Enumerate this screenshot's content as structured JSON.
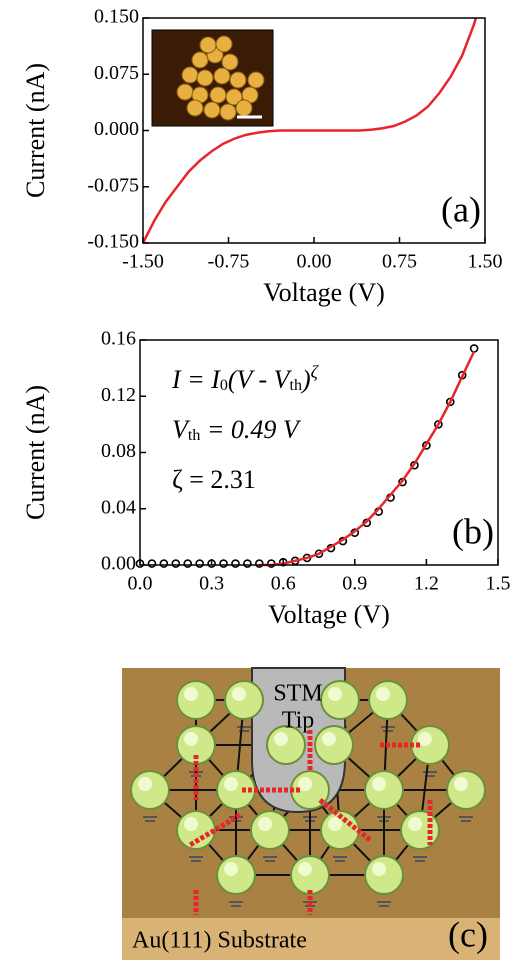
{
  "chart_data": [
    {
      "type": "line",
      "x_label": "Voltage (V)",
      "y_label": "Current (nA)",
      "annotation": "(a)",
      "x": [
        -1.5,
        -1.4,
        -1.3,
        -1.2,
        -1.1,
        -1.0,
        -0.9,
        -0.8,
        -0.7,
        -0.6,
        -0.5,
        -0.4,
        -0.3,
        -0.2,
        -0.1,
        0.0,
        0.1,
        0.2,
        0.3,
        0.4,
        0.5,
        0.6,
        0.7,
        0.8,
        0.9,
        1.0,
        1.1,
        1.2,
        1.3,
        1.4,
        1.42
      ],
      "series": [
        {
          "style": "line",
          "color": "#e8262a",
          "values": [
            -0.15,
            -0.12,
            -0.095,
            -0.075,
            -0.055,
            -0.04,
            -0.028,
            -0.018,
            -0.011,
            -0.006,
            -0.003,
            -0.001,
            0,
            0,
            0,
            0,
            0,
            0,
            0,
            0,
            0.001,
            0.003,
            0.006,
            0.012,
            0.02,
            0.032,
            0.05,
            0.072,
            0.1,
            0.14,
            0.15
          ]
        }
      ],
      "xlim": [
        -1.5,
        1.5
      ],
      "ylim": [
        -0.15,
        0.15
      ],
      "xticks": [
        {
          "value": -1.5,
          "label": "-1.50"
        },
        {
          "value": -0.75,
          "label": "-0.75"
        },
        {
          "value": 0,
          "label": "0.00"
        },
        {
          "value": 0.75,
          "label": "0.75"
        },
        {
          "value": 1.5,
          "label": "1.50"
        }
      ],
      "yticks": [
        {
          "value": -0.15,
          "label": "-0.150"
        },
        {
          "value": -0.075,
          "label": "-0.075"
        },
        {
          "value": 0,
          "label": "0.000"
        },
        {
          "value": 0.075,
          "label": "0.075"
        },
        {
          "value": 0.15,
          "label": "0.150"
        }
      ]
    },
    {
      "type": "scatter",
      "x_label": "Voltage (V)",
      "y_label": "Current (nA)",
      "annotation": "(b)",
      "equation": [
        "I = I",
        "0",
        "(V - V",
        "th",
        ")",
        "ζ"
      ],
      "vth_text": [
        "V",
        "th",
        " = 0.49 V"
      ],
      "zeta_text": "ζ = 2.31",
      "x": [
        0,
        0.05,
        0.1,
        0.15,
        0.2,
        0.25,
        0.3,
        0.35,
        0.4,
        0.45,
        0.5,
        0.55,
        0.6,
        0.65,
        0.7,
        0.75,
        0.8,
        0.85,
        0.9,
        0.95,
        1.0,
        1.05,
        1.1,
        1.15,
        1.2,
        1.25,
        1.3,
        1.35,
        1.4
      ],
      "series": [
        {
          "style": "markers",
          "color": "#000000",
          "values": [
            0.001,
            0.001,
            0.001,
            0.001,
            0.001,
            0.001,
            0.001,
            0.001,
            0.001,
            0.001,
            0.001,
            0.001,
            0.002,
            0.003,
            0.005,
            0.008,
            0.012,
            0.017,
            0.023,
            0.03,
            0.038,
            0.048,
            0.059,
            0.071,
            0.085,
            0.1,
            0.116,
            0.135,
            0.154
          ]
        },
        {
          "style": "line",
          "color": "#e8262a",
          "values": [
            null,
            null,
            null,
            null,
            null,
            null,
            null,
            null,
            null,
            null,
            0,
            0,
            0.001,
            0.003,
            0.005,
            0.008,
            0.013,
            0.018,
            0.024,
            0.031,
            0.04,
            0.05,
            0.06,
            0.072,
            0.086,
            0.1,
            0.116,
            0.134,
            0.152
          ]
        }
      ],
      "xlim": [
        0,
        1.5
      ],
      "ylim": [
        0,
        0.16
      ],
      "xticks": [
        {
          "value": 0,
          "label": "0.0"
        },
        {
          "value": 0.3,
          "label": "0.3"
        },
        {
          "value": 0.6,
          "label": "0.6"
        },
        {
          "value": 0.9,
          "label": "0.9"
        },
        {
          "value": 1.2,
          "label": "1.2"
        },
        {
          "value": 1.5,
          "label": "1.5"
        }
      ],
      "yticks": [
        {
          "value": 0,
          "label": "0.00"
        },
        {
          "value": 0.04,
          "label": "0.04"
        },
        {
          "value": 0.08,
          "label": "0.08"
        },
        {
          "value": 0.12,
          "label": "0.12"
        },
        {
          "value": 0.16,
          "label": "0.16"
        }
      ]
    }
  ],
  "diagram": {
    "tip_label": [
      "STM",
      "Tip"
    ],
    "substrate_label": "Au(111) Substrate",
    "panel_label": "(c)"
  }
}
